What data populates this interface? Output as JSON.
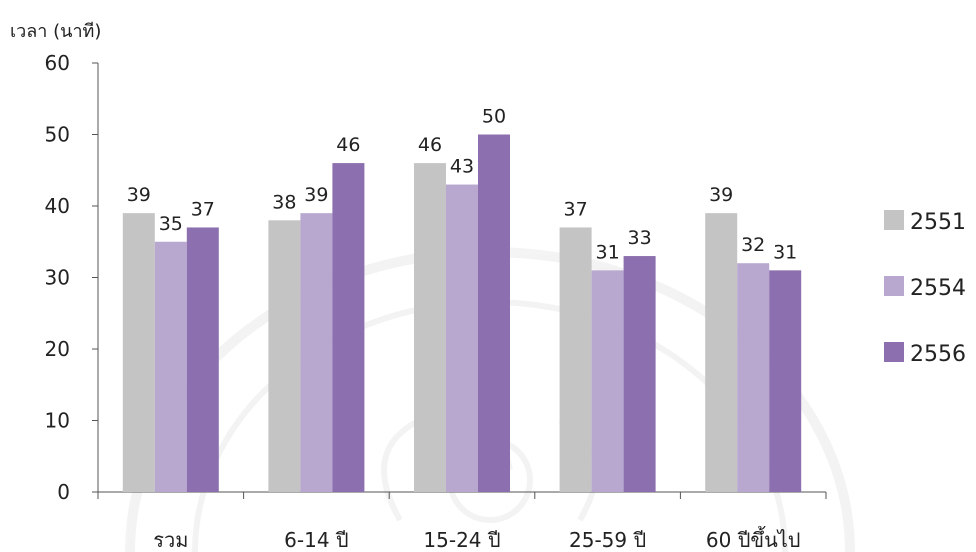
{
  "chart_data": {
    "type": "bar",
    "ylabel": "เวลา (นาที)",
    "ylim": [
      0,
      60
    ],
    "yticks": [
      0,
      10,
      20,
      30,
      40,
      50,
      60
    ],
    "categories": [
      "รวม",
      "6-14 ปี",
      "15-24 ปี",
      "25-59 ปี",
      "60 ปีขึ้นไป"
    ],
    "series": [
      {
        "name": "2551",
        "color": "#c4c4c4",
        "values": [
          39,
          38,
          46,
          37,
          39
        ]
      },
      {
        "name": "2554",
        "color": "#b8a8d0",
        "values": [
          35,
          39,
          43,
          31,
          32
        ]
      },
      {
        "name": "2556",
        "color": "#8c6fae",
        "values": [
          37,
          46,
          50,
          33,
          31
        ]
      }
    ],
    "grid": false,
    "legend": "right"
  },
  "watermark": {
    "description": "university seal"
  }
}
